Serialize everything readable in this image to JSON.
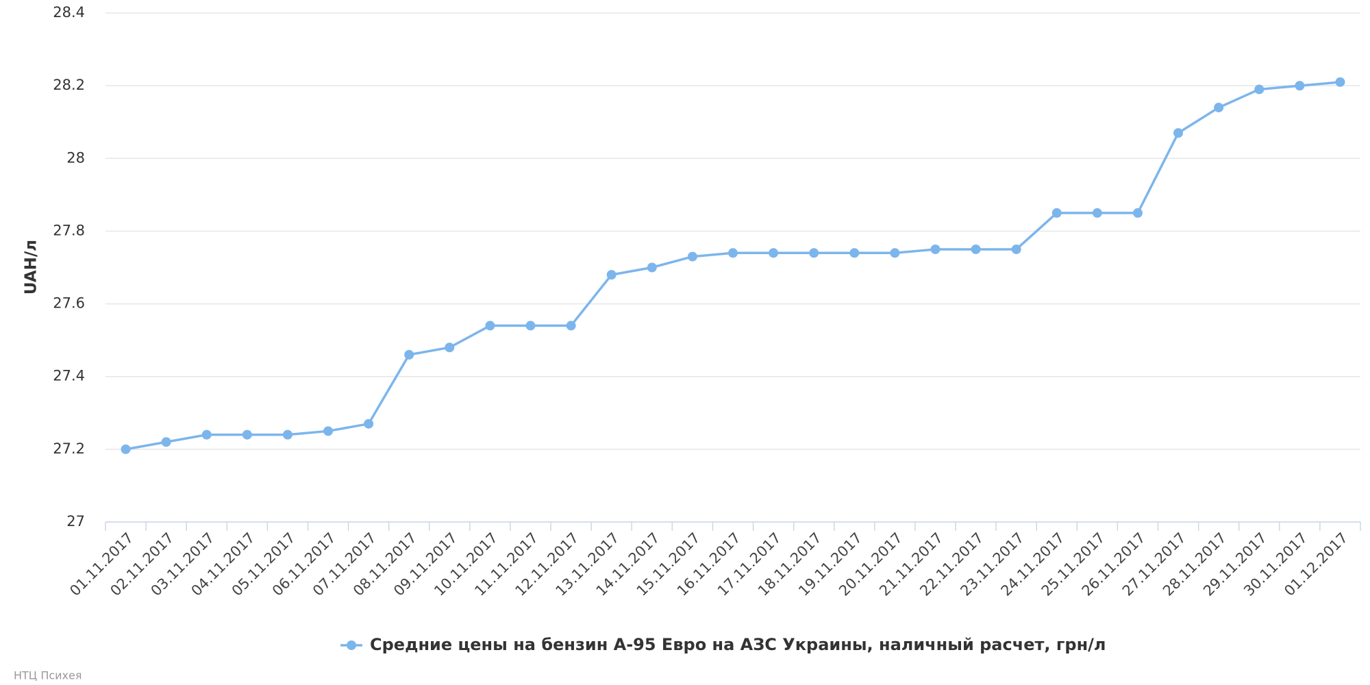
{
  "chart_data": {
    "type": "line",
    "y_label": "UAH/л",
    "credits": "НТЦ Психея",
    "categories": [
      "01.11.2017",
      "02.11.2017",
      "03.11.2017",
      "04.11.2017",
      "05.11.2017",
      "06.11.2017",
      "07.11.2017",
      "08.11.2017",
      "09.11.2017",
      "10.11.2017",
      "11.11.2017",
      "12.11.2017",
      "13.11.2017",
      "14.11.2017",
      "15.11.2017",
      "16.11.2017",
      "17.11.2017",
      "18.11.2017",
      "19.11.2017",
      "20.11.2017",
      "21.11.2017",
      "22.11.2017",
      "23.11.2017",
      "24.11.2017",
      "25.11.2017",
      "26.11.2017",
      "27.11.2017",
      "28.11.2017",
      "29.11.2017",
      "30.11.2017",
      "01.12.2017"
    ],
    "series": [
      {
        "name": "Средние цены на бензин А-95 Евро на АЗС Украины, наличный расчет, грн/л",
        "color": "#7cb5ec",
        "values": [
          27.2,
          27.22,
          27.24,
          27.24,
          27.24,
          27.25,
          27.27,
          27.46,
          27.48,
          27.54,
          27.54,
          27.54,
          27.68,
          27.7,
          27.73,
          27.74,
          27.74,
          27.74,
          27.74,
          27.74,
          27.75,
          27.75,
          27.75,
          27.85,
          27.85,
          27.85,
          28.07,
          28.14,
          28.19,
          28.2,
          28.21
        ]
      }
    ],
    "ylim": [
      27,
      28.4
    ],
    "yticks": [
      27,
      27.2,
      27.4,
      27.6,
      27.8,
      28,
      28.2,
      28.4
    ],
    "grid": true
  }
}
